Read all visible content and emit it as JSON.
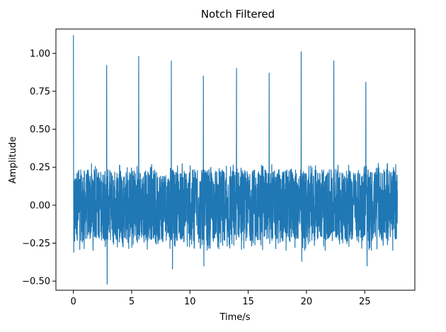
{
  "chart_data": {
    "type": "line",
    "title": "Notch Filtered",
    "xlabel": "Time/s",
    "ylabel": "Amplitude",
    "xlim": [
      -1.5,
      29.3
    ],
    "ylim": [
      -0.56,
      1.16
    ],
    "x_ticks": [
      0,
      5,
      10,
      15,
      20,
      25
    ],
    "x_tick_labels": [
      "0",
      "5",
      "10",
      "15",
      "20",
      "25"
    ],
    "y_ticks": [
      -0.5,
      -0.25,
      0.0,
      0.25,
      0.5,
      0.75,
      1.0
    ],
    "y_tick_labels": [
      "−0.50",
      "−0.25",
      "0.00",
      "0.25",
      "0.50",
      "0.75",
      "1.00"
    ],
    "grid": false,
    "legend": "none",
    "series": [
      {
        "color": "#1f77b4",
        "x_range": [
          0,
          27.8
        ],
        "baseline_noise_range": [
          -0.3,
          0.25
        ],
        "peaks": [
          {
            "x": 0.0,
            "y": 1.12
          },
          {
            "x": 2.85,
            "y": 0.92
          },
          {
            "x": 5.6,
            "y": 0.98
          },
          {
            "x": 8.4,
            "y": 0.95
          },
          {
            "x": 11.15,
            "y": 0.85
          },
          {
            "x": 14.0,
            "y": 0.9
          },
          {
            "x": 16.8,
            "y": 0.87
          },
          {
            "x": 19.55,
            "y": 1.01
          },
          {
            "x": 22.35,
            "y": 0.95
          },
          {
            "x": 25.1,
            "y": 0.81
          }
        ],
        "troughs": [
          {
            "x": 2.9,
            "y": -0.52
          },
          {
            "x": 8.5,
            "y": -0.42
          },
          {
            "x": 11.2,
            "y": -0.4
          },
          {
            "x": 19.6,
            "y": -0.37
          },
          {
            "x": 25.2,
            "y": -0.4
          }
        ]
      }
    ]
  }
}
